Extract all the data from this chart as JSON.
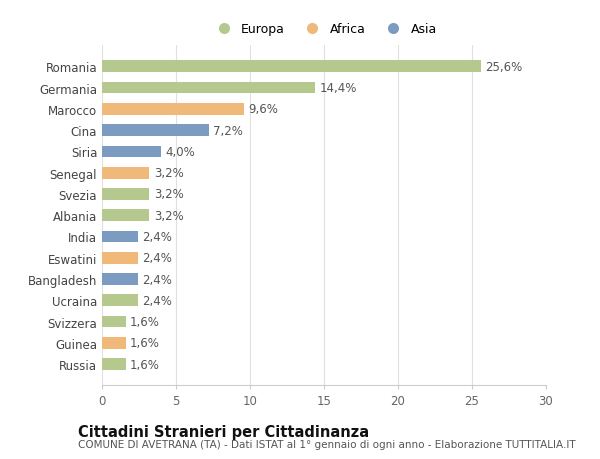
{
  "categories": [
    "Romania",
    "Germania",
    "Marocco",
    "Cina",
    "Siria",
    "Senegal",
    "Svezia",
    "Albania",
    "India",
    "Eswatini",
    "Bangladesh",
    "Ucraina",
    "Svizzera",
    "Guinea",
    "Russia"
  ],
  "values": [
    25.6,
    14.4,
    9.6,
    7.2,
    4.0,
    3.2,
    3.2,
    3.2,
    2.4,
    2.4,
    2.4,
    2.4,
    1.6,
    1.6,
    1.6
  ],
  "labels": [
    "25,6%",
    "14,4%",
    "9,6%",
    "7,2%",
    "4,0%",
    "3,2%",
    "3,2%",
    "3,2%",
    "2,4%",
    "2,4%",
    "2,4%",
    "2,4%",
    "1,6%",
    "1,6%",
    "1,6%"
  ],
  "continent": [
    "Europa",
    "Europa",
    "Africa",
    "Asia",
    "Asia",
    "Africa",
    "Europa",
    "Europa",
    "Asia",
    "Africa",
    "Asia",
    "Europa",
    "Europa",
    "Africa",
    "Europa"
  ],
  "colors": {
    "Europa": "#b5c98e",
    "Africa": "#f0b97a",
    "Asia": "#7b9cc0"
  },
  "legend_labels": [
    "Europa",
    "Africa",
    "Asia"
  ],
  "xlim": [
    0,
    30
  ],
  "xticks": [
    0,
    5,
    10,
    15,
    20,
    25,
    30
  ],
  "title": "Cittadini Stranieri per Cittadinanza",
  "subtitle": "COMUNE DI AVETRANA (TA) - Dati ISTAT al 1° gennaio di ogni anno - Elaborazione TUTTITALIA.IT",
  "background_color": "#ffffff",
  "bar_height": 0.55,
  "label_fontsize": 8.5,
  "title_fontsize": 10.5,
  "subtitle_fontsize": 7.5,
  "tick_fontsize": 8.5
}
